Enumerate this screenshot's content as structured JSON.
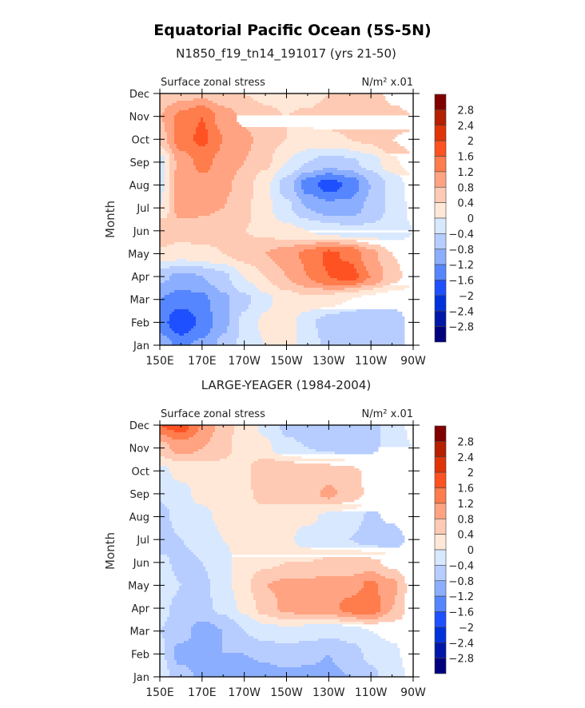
{
  "title": "Equatorial Pacific Ocean (5S-5N)",
  "colors": {
    "levels": [
      -2.8,
      -2.4,
      -2,
      -1.6,
      -1.2,
      -0.8,
      -0.4,
      0,
      0.4,
      0.8,
      1.2,
      1.6,
      2,
      2.4,
      2.8
    ],
    "fills": [
      "#00007f",
      "#0018a8",
      "#0032dc",
      "#1e50ff",
      "#5586ff",
      "#8caeff",
      "#b8cdff",
      "#d8e8ff",
      "#ffe8d8",
      "#ffcab4",
      "#ffa382",
      "#ff7c4c",
      "#ff5222",
      "#e03408",
      "#b42000",
      "#800000"
    ]
  },
  "chart_data": [
    {
      "type": "heatmap",
      "title": "N1850_f19_tn14_191017 (yrs 21-50)",
      "left_label": "Surface zonal stress",
      "units_label": "N/m² x.01",
      "ylabel": "Month",
      "xlabel": "",
      "x_ticks": [
        "150E",
        "170E",
        "170W",
        "150W",
        "130W",
        "110W",
        "90W"
      ],
      "y_ticks": [
        "Jan",
        "Feb",
        "Mar",
        "Apr",
        "May",
        "Jun",
        "Jul",
        "Aug",
        "Sep",
        "Oct",
        "Nov",
        "Dec"
      ],
      "colorbar_labels": [
        "2.8",
        "2.4",
        "2",
        "1.6",
        "1.2",
        "0.8",
        "0.4",
        "0",
        "−0.4",
        "−0.8",
        "−1.2",
        "−1.6",
        "−2",
        "−2.4",
        "−2.8"
      ],
      "x_longitudes_east": [
        150,
        160,
        170,
        180,
        190,
        200,
        210,
        220,
        230,
        240,
        250,
        260,
        270
      ],
      "values_by_month": [
        [
          -1.0,
          -1.3,
          -1.1,
          -0.7,
          -0.3,
          0.0,
          0.2,
          -0.2,
          -0.5,
          -0.8,
          -0.8,
          -0.6,
          -0.3
        ],
        [
          -1.4,
          -2.0,
          -1.5,
          -0.9,
          -0.3,
          0.1,
          0.2,
          -0.3,
          -0.6,
          -0.8,
          -0.8,
          -0.6,
          -0.3
        ],
        [
          -1.2,
          -1.4,
          -1.3,
          -0.9,
          -0.5,
          -0.1,
          0.2,
          0.3,
          0.2,
          0.0,
          -0.2,
          -0.3,
          -0.2
        ],
        [
          -0.7,
          -0.9,
          -0.8,
          -0.5,
          0.0,
          0.4,
          0.8,
          1.2,
          1.6,
          1.8,
          1.2,
          0.6,
          0.1
        ],
        [
          0.3,
          0.2,
          0.3,
          0.4,
          0.6,
          0.8,
          1.0,
          1.3,
          1.7,
          1.5,
          0.9,
          0.4,
          0.1
        ],
        [
          0.8,
          0.6,
          0.6,
          0.5,
          0.4,
          0.3,
          0.1,
          0.0,
          -0.2,
          -0.3,
          -0.3,
          -0.2,
          0.0
        ],
        [
          0.0,
          1.0,
          0.9,
          0.8,
          0.5,
          0.1,
          -0.3,
          -0.8,
          -1.0,
          -1.0,
          -0.7,
          -0.3,
          0.1
        ],
        [
          -0.1,
          1.0,
          1.1,
          0.9,
          0.6,
          0.1,
          -0.6,
          -1.4,
          -1.8,
          -1.5,
          -0.8,
          -0.3,
          0.2
        ],
        [
          -0.2,
          1.0,
          1.3,
          1.1,
          0.8,
          0.5,
          0.0,
          -0.4,
          -0.6,
          -0.5,
          -0.2,
          0.3,
          0.7
        ],
        [
          0.6,
          1.4,
          1.7,
          1.2,
          0.9,
          0.6,
          0.4,
          0.3,
          0.3,
          0.4,
          0.5,
          0.8,
          1.0
        ],
        [
          0.8,
          1.3,
          1.6,
          1.0,
          0.7,
          0.5,
          0.4,
          0.5,
          0.6,
          0.6,
          0.6,
          0.5,
          0.4
        ],
        [
          0.5,
          0.6,
          0.7,
          0.5,
          0.4,
          0.3,
          0.2,
          0.2,
          0.4,
          0.6,
          0.6,
          0.3,
          0.2
        ]
      ]
    },
    {
      "type": "heatmap",
      "title": "LARGE-YEAGER (1984-2004)",
      "left_label": "Surface zonal stress",
      "units_label": "N/m² x.01",
      "ylabel": "Month",
      "xlabel": "",
      "x_ticks": [
        "150E",
        "170E",
        "170W",
        "150W",
        "130W",
        "110W",
        "90W"
      ],
      "y_ticks": [
        "Jan",
        "Feb",
        "Mar",
        "Apr",
        "May",
        "Jun",
        "Jul",
        "Aug",
        "Sep",
        "Oct",
        "Nov",
        "Dec"
      ],
      "colorbar_labels": [
        "2.8",
        "2.4",
        "2",
        "1.6",
        "1.2",
        "0.8",
        "0.4",
        "0",
        "−0.4",
        "−0.8",
        "−1.2",
        "−1.6",
        "−2",
        "−2.4",
        "−2.8"
      ],
      "x_longitudes_east": [
        150,
        160,
        170,
        180,
        190,
        200,
        210,
        220,
        230,
        240,
        250,
        260,
        270
      ],
      "values_by_month": [
        [
          -0.2,
          -0.6,
          -0.9,
          -1.0,
          -1.2,
          -1.0,
          -0.9,
          -0.9,
          -0.9,
          -0.8,
          -0.5,
          -0.2,
          0.1
        ],
        [
          -0.3,
          -1.0,
          -1.0,
          -0.8,
          -0.8,
          -0.7,
          -0.6,
          -0.7,
          -0.8,
          -0.6,
          -0.3,
          -0.1,
          0.2
        ],
        [
          -0.4,
          -0.6,
          -1.0,
          -0.8,
          -0.4,
          -0.2,
          -0.1,
          -0.2,
          -0.3,
          -0.2,
          0.0,
          0.1,
          0.2
        ],
        [
          -0.3,
          -0.5,
          -0.5,
          -0.3,
          0.1,
          0.6,
          0.9,
          1.0,
          1.0,
          1.4,
          1.5,
          0.8,
          0.2
        ],
        [
          -0.2,
          -0.4,
          -0.5,
          -0.2,
          0.3,
          0.8,
          0.9,
          0.9,
          1.0,
          1.0,
          1.3,
          0.9,
          0.2
        ],
        [
          -0.3,
          -0.5,
          -0.4,
          -0.1,
          0.2,
          0.3,
          0.4,
          0.4,
          0.5,
          0.5,
          0.5,
          0.3,
          0.1
        ],
        [
          -0.6,
          -0.4,
          -0.3,
          0.0,
          0.1,
          0.1,
          0.1,
          -0.2,
          -0.4,
          -0.4,
          -0.6,
          -0.7,
          -0.2
        ],
        [
          -0.6,
          -0.2,
          -0.1,
          0.1,
          0.2,
          0.2,
          0.2,
          0.1,
          -0.1,
          -0.2,
          -0.5,
          -0.3,
          0.0
        ],
        [
          -0.3,
          -0.1,
          0.1,
          0.2,
          0.3,
          0.6,
          0.6,
          0.6,
          0.9,
          0.6,
          0.3,
          0.2,
          0.0
        ],
        [
          -0.1,
          0.1,
          0.2,
          0.3,
          0.3,
          0.8,
          0.8,
          0.6,
          0.6,
          0.5,
          0.3,
          0.1,
          0.0
        ],
        [
          0.6,
          1.0,
          0.8,
          0.5,
          0.2,
          0.1,
          -0.3,
          -0.4,
          -0.5,
          -0.6,
          -0.5,
          -0.2,
          0.0
        ],
        [
          1.6,
          1.8,
          1.2,
          0.6,
          0.2,
          -0.1,
          -0.5,
          -0.6,
          -0.7,
          -0.7,
          -0.6,
          -0.2,
          0.1
        ]
      ]
    }
  ]
}
